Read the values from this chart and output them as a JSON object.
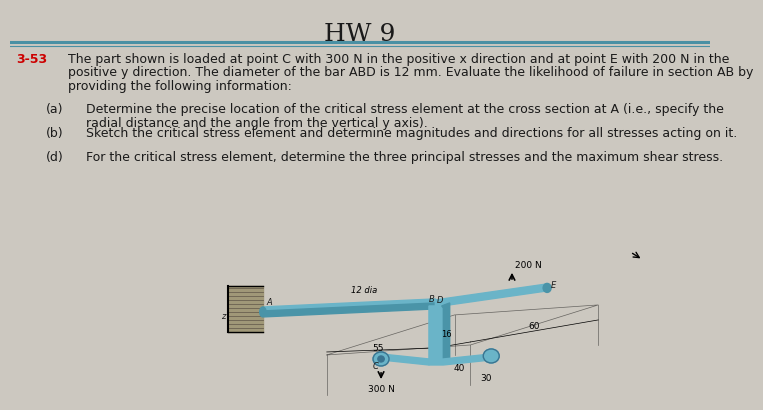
{
  "title": "HW 9",
  "problem_number": "3-53",
  "bg_color": "#ccc8c0",
  "title_color": "#1a1a1a",
  "problem_color": "#cc0000",
  "text_color": "#1a1a1a",
  "title_fontsize": 18,
  "body_fontsize": 9.0,
  "line_color_thick": "#4a90a4",
  "line_color_thin": "#4a90a4",
  "paragraph": "The part shown is loaded at point C with 300 N in the positive x direction and at point E with 200 N in the\npositive y direction. The diameter of the bar ABD is 12 mm. Evaluate the likelihood of failure in section AB by\nproviding the following information:",
  "items": [
    [
      "(a)",
      "Determine the precise location of the critical stress element at the cross section at A (i.e., specify the",
      "radial distance and the angle from the vertical y axis)."
    ],
    [
      "(b)",
      "Sketch the critical stress element and determine magnitudes and directions for all stresses acting on it.",
      ""
    ],
    [
      "(d)",
      "For the critical stress element, determine the three principal stresses and the maximum shear stress.",
      ""
    ]
  ],
  "part_color": "#6ab4c8",
  "part_dark": "#4a94a8",
  "part_darker": "#3a7490",
  "wall_color": "#a09878",
  "wall_hatch": "#7a7060"
}
